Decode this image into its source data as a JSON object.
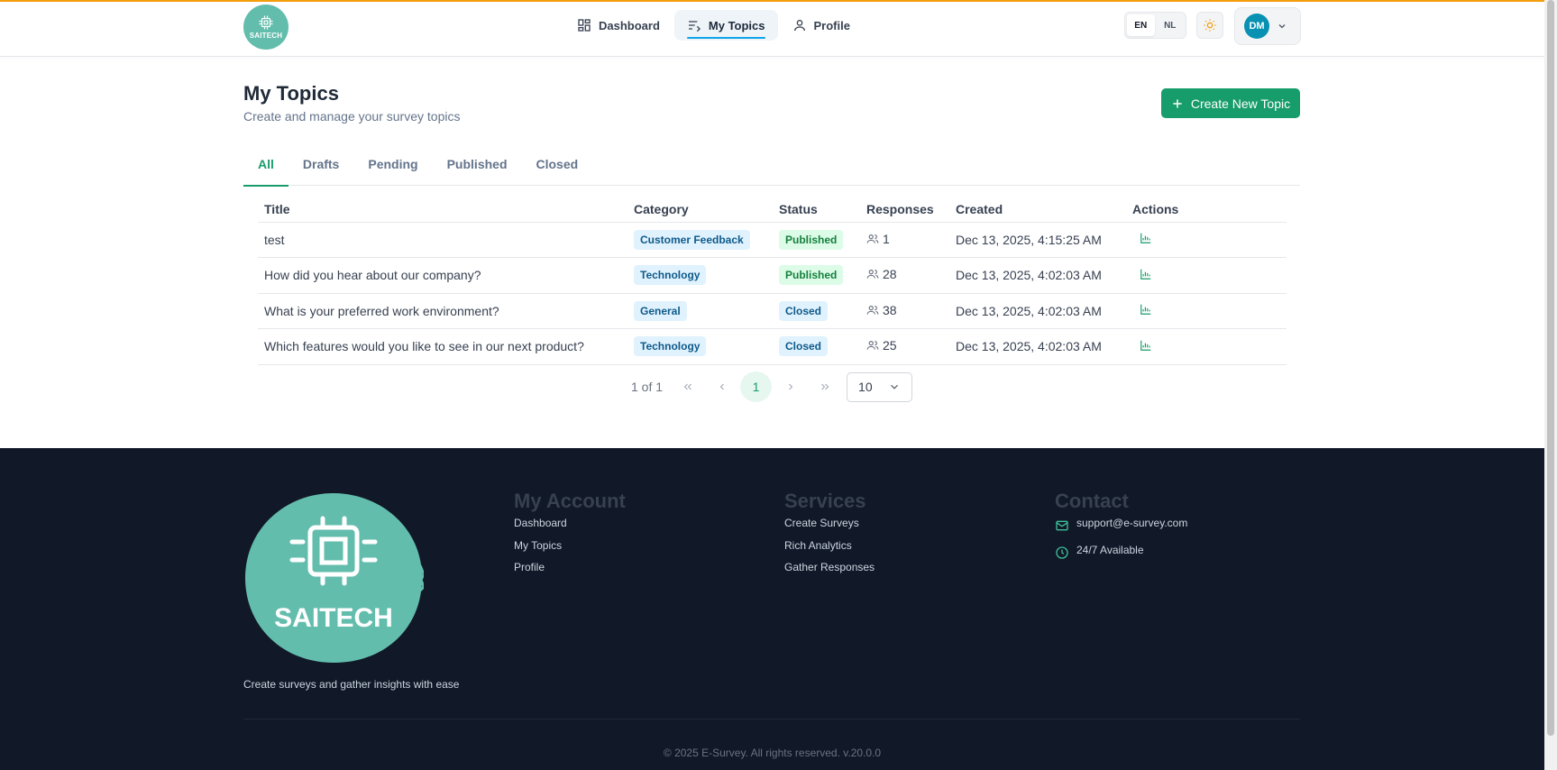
{
  "header": {
    "logo_text": "SAITECH",
    "nav": [
      {
        "label": "Dashboard",
        "icon": "dashboard-icon"
      },
      {
        "label": "My Topics",
        "icon": "list-icon"
      },
      {
        "label": "Profile",
        "icon": "user-icon"
      }
    ],
    "languages": [
      "EN",
      "NL"
    ],
    "selected_language": "EN",
    "user_initials": "DM"
  },
  "main": {
    "title": "My Topics",
    "subtitle": "Create and manage your survey topics",
    "create_button": "Create New Topic",
    "tabs": [
      "All",
      "Drafts",
      "Pending",
      "Published",
      "Closed"
    ],
    "active_tab": "All",
    "table": {
      "headers": [
        "Title",
        "Category",
        "Status",
        "Responses",
        "Created",
        "Actions"
      ],
      "rows": [
        {
          "title": "test",
          "category": "Customer Feedback",
          "status": "Published",
          "responses": "1",
          "created": "Dec 13, 2025, 4:15:25 AM"
        },
        {
          "title": "How did you hear about our company?",
          "category": "Technology",
          "status": "Published",
          "responses": "28",
          "created": "Dec 13, 2025, 4:02:03 AM"
        },
        {
          "title": "What is your preferred work environment?",
          "category": "General",
          "status": "Closed",
          "responses": "38",
          "created": "Dec 13, 2025, 4:02:03 AM"
        },
        {
          "title": "Which features would you like to see in our next product?",
          "category": "Technology",
          "status": "Closed",
          "responses": "25",
          "created": "Dec 13, 2025, 4:02:03 AM"
        }
      ]
    },
    "pagination": {
      "info": "1 of 1",
      "current_page": "1",
      "page_size": "10"
    }
  },
  "footer": {
    "logo_text": "SAITECH",
    "tagline": "Create surveys and gather insights with ease",
    "my_account": {
      "heading": "My Account",
      "links": [
        "Dashboard",
        "My Topics",
        "Profile"
      ]
    },
    "services": {
      "heading": "Services",
      "links": [
        "Create Surveys",
        "Rich Analytics",
        "Gather Responses"
      ]
    },
    "contact": {
      "heading": "Contact",
      "email": "support@e-survey.com",
      "availability": "24/7 Available"
    },
    "copyright": "© 2025 E-Survey. All rights reserved. v.20.0.0"
  },
  "colors": {
    "brand": "#179c6b",
    "logo_teal": "#63bdad",
    "footer_bg": "#111827",
    "accent_top": "#f59e0b"
  }
}
